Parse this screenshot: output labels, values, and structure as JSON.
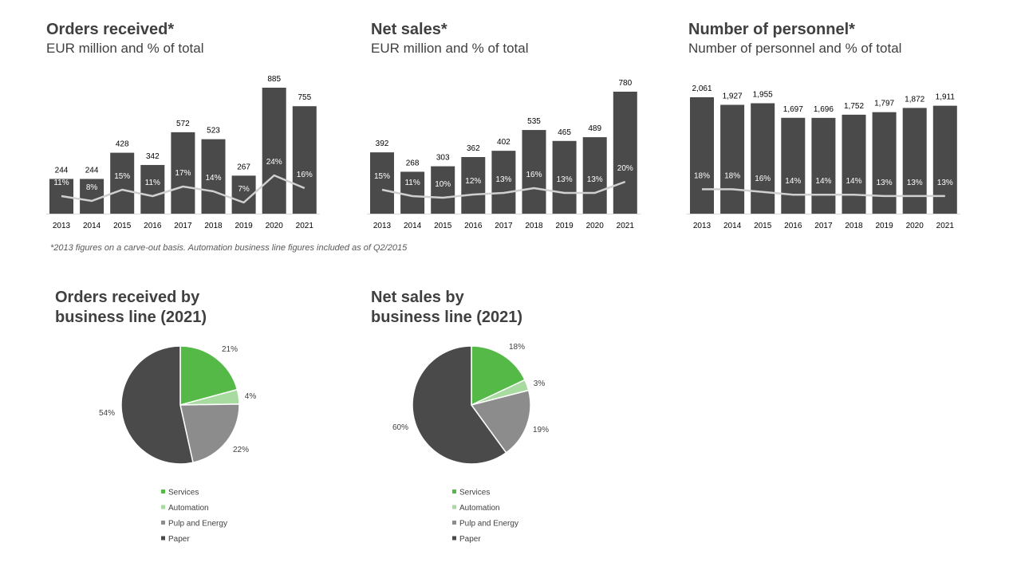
{
  "colors": {
    "bar": "#4a4a4b",
    "line": "#d0d0d0",
    "axis": "#d9d9d9",
    "services": "#55b947",
    "automation": "#a8dba0",
    "pulp_energy": "#8c8c8c",
    "paper": "#4a4a4b"
  },
  "charts": {
    "orders": {
      "title": "Orders received*",
      "subtitle": "EUR million and % of total"
    },
    "sales": {
      "title": "Net sales*",
      "subtitle": "EUR million and % of total"
    },
    "personnel": {
      "title": "Number of personnel*",
      "subtitle": "Number of personnel and % of total"
    }
  },
  "footnote": "*2013 figures on a carve-out basis. Automation business line figures included as of Q2/2015",
  "pies": {
    "orders": {
      "title_line1": "Orders received by",
      "title_line2": "business line (2021)"
    },
    "sales": {
      "title_line1": "Net sales by",
      "title_line2": "business line (2021)"
    }
  },
  "chart_data": [
    {
      "id": "orders",
      "type": "bar",
      "title": "Orders received*",
      "subtitle": "EUR million and % of total",
      "categories": [
        "2013",
        "2014",
        "2015",
        "2016",
        "2017",
        "2018",
        "2019",
        "2020",
        "2021"
      ],
      "values": [
        244,
        244,
        428,
        342,
        572,
        523,
        267,
        885,
        755
      ],
      "labels": [
        "244",
        "244",
        "428",
        "342",
        "572",
        "523",
        "267",
        "885",
        "755"
      ],
      "percent": [
        11,
        8,
        15,
        11,
        17,
        14,
        7,
        24,
        16
      ],
      "percent_labels": [
        "11%",
        "8%",
        "15%",
        "11%",
        "17%",
        "14%",
        "7%",
        "24%",
        "16%"
      ],
      "ylim": [
        0,
        900
      ]
    },
    {
      "id": "sales",
      "type": "bar",
      "title": "Net sales*",
      "subtitle": "EUR million and % of total",
      "categories": [
        "2013",
        "2014",
        "2015",
        "2016",
        "2017",
        "2018",
        "2019",
        "2020",
        "2021"
      ],
      "values": [
        392,
        268,
        303,
        362,
        402,
        535,
        465,
        489,
        780
      ],
      "labels": [
        "392",
        "268",
        "303",
        "362",
        "402",
        "535",
        "465",
        "489",
        "780"
      ],
      "percent": [
        15,
        11,
        10,
        12,
        13,
        16,
        13,
        13,
        20
      ],
      "percent_labels": [
        "15%",
        "11%",
        "10%",
        "12%",
        "13%",
        "16%",
        "13%",
        "13%",
        "20%"
      ],
      "ylim": [
        0,
        900
      ]
    },
    {
      "id": "personnel",
      "type": "bar",
      "title": "Number of personnel*",
      "subtitle": "Number of personnel and % of total",
      "categories": [
        "2013",
        "2014",
        "2015",
        "2016",
        "2017",
        "2018",
        "2019",
        "2020",
        "2021"
      ],
      "values": [
        2061,
        1927,
        1955,
        1697,
        1696,
        1752,
        1797,
        1872,
        1911
      ],
      "labels": [
        "2,061",
        "1,927",
        "1,955",
        "1,697",
        "1,696",
        "1,752",
        "1,797",
        "1,872",
        "1,911"
      ],
      "percent": [
        18,
        18,
        16,
        14,
        14,
        14,
        13,
        13,
        13
      ],
      "percent_labels": [
        "18%",
        "18%",
        "16%",
        "14%",
        "14%",
        "14%",
        "13%",
        "13%",
        "13%"
      ],
      "ylim": [
        0,
        2300
      ]
    },
    {
      "id": "pie-orders",
      "type": "pie",
      "title": "Orders received by business line (2021)",
      "slices": [
        {
          "name": "Services",
          "value": 21,
          "label": "21%",
          "color_key": "services"
        },
        {
          "name": "Automation",
          "value": 4,
          "label": "4%",
          "color_key": "automation"
        },
        {
          "name": "Pulp and Energy",
          "value": 22,
          "label": "22%",
          "color_key": "pulp_energy"
        },
        {
          "name": "Paper",
          "value": 54,
          "label": "54%",
          "color_key": "paper"
        }
      ]
    },
    {
      "id": "pie-sales",
      "type": "pie",
      "title": "Net sales by business line (2021)",
      "slices": [
        {
          "name": "Services",
          "value": 18,
          "label": "18%",
          "color_key": "services"
        },
        {
          "name": "Automation",
          "value": 3,
          "label": "3%",
          "color_key": "automation"
        },
        {
          "name": "Pulp and Energy",
          "value": 19,
          "label": "19%",
          "color_key": "pulp_energy"
        },
        {
          "name": "Paper",
          "value": 60,
          "label": "60%",
          "color_key": "paper"
        }
      ]
    }
  ]
}
